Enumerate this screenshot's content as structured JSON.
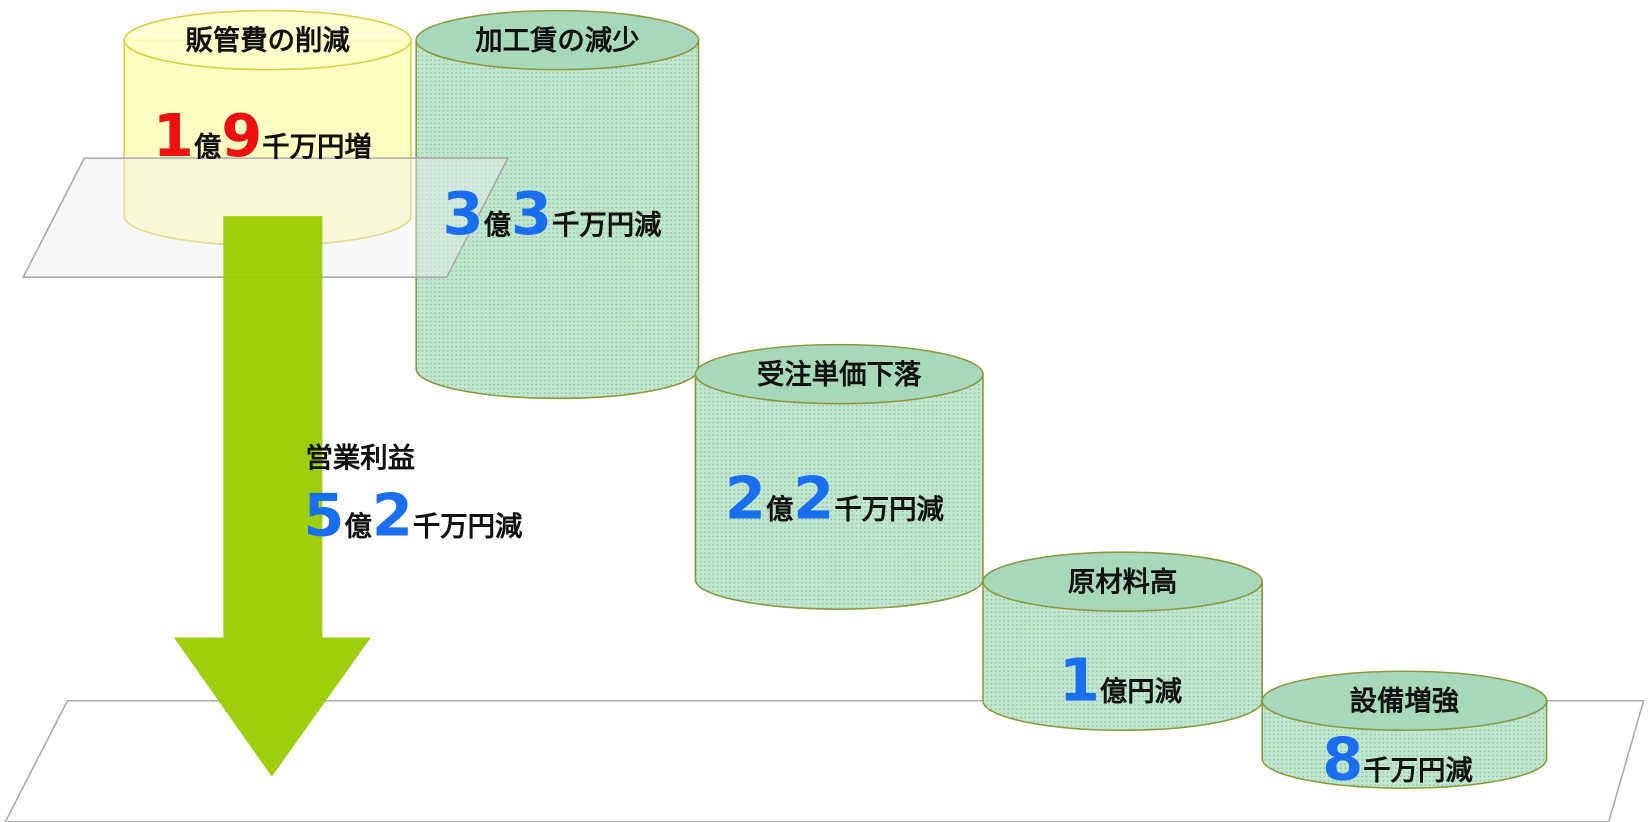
{
  "nodes": [
    {
      "label": "販管費の削減",
      "amount": [
        "1",
        "億",
        "9",
        "千万円増"
      ],
      "color": "#ee1111"
    },
    {
      "label": "加工賃の減少",
      "amount": [
        "3",
        "億",
        "3",
        "千万円減"
      ],
      "color": "#1a6ef0"
    },
    {
      "label": "受注単価下落",
      "amount": [
        "2",
        "億",
        "2",
        "千万円減"
      ],
      "color": "#1a6ef0"
    },
    {
      "label": "原材料高",
      "amount": [
        "1",
        "億円減"
      ],
      "color": "#1a6ef0"
    },
    {
      "label": "設備増強",
      "amount": [
        "8",
        "千万円減"
      ],
      "color": "#1a6ef0"
    }
  ],
  "summary": {
    "label": "営業利益",
    "amount": [
      "5",
      "億",
      "2",
      "千万円減"
    ],
    "color": "#1a6ef0"
  }
}
